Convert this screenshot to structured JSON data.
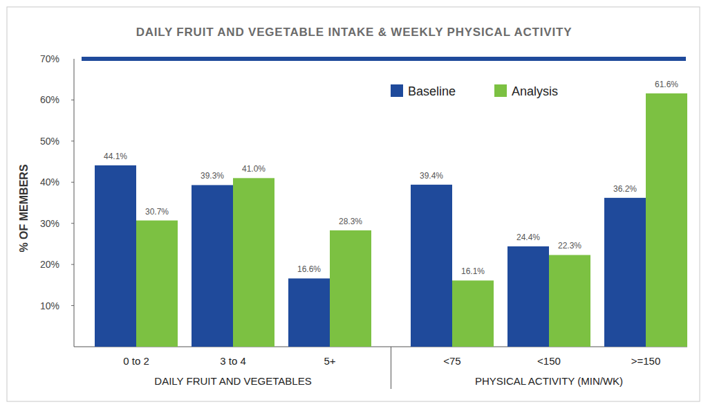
{
  "chart_data": {
    "type": "bar",
    "title": "DAILY FRUIT AND VEGETABLE INTAKE & WEEKLY PHYSICAL ACTIVITY",
    "ylabel": "% OF MEMBERS",
    "xlabel": [
      "DAILY FRUIT AND VEGETABLES",
      "PHYSICAL ACTIVITY (MIN/WK)"
    ],
    "categories": [
      "0 to 2",
      "3 to 4",
      "5+",
      "<75",
      "<150",
      ">=150"
    ],
    "series": [
      {
        "name": "Baseline",
        "color": "#1f4a9b",
        "values": [
          44.1,
          39.3,
          16.6,
          39.4,
          24.4,
          36.2
        ],
        "value_labels": [
          "44.1%",
          "39.3%",
          "16.6%",
          "39.4%",
          "24.4%",
          "36.2%"
        ]
      },
      {
        "name": "Analysis",
        "color": "#7cc142",
        "values": [
          30.7,
          41.0,
          28.3,
          16.1,
          22.3,
          61.6
        ],
        "value_labels": [
          "30.7%",
          "41.0%",
          "28.3%",
          "16.1%",
          "22.3%",
          "61.6%"
        ]
      }
    ],
    "ylim": [
      0,
      70
    ],
    "yticks": [
      {
        "value": 10,
        "label": "10%"
      },
      {
        "value": 20,
        "label": "20%"
      },
      {
        "value": 30,
        "label": "30%"
      },
      {
        "value": 40,
        "label": "40%"
      },
      {
        "value": 50,
        "label": "50%"
      },
      {
        "value": 60,
        "label": "60%"
      },
      {
        "value": 70,
        "label": "70%"
      }
    ],
    "data_labels": true,
    "legend": "top-right",
    "grid": false
  }
}
